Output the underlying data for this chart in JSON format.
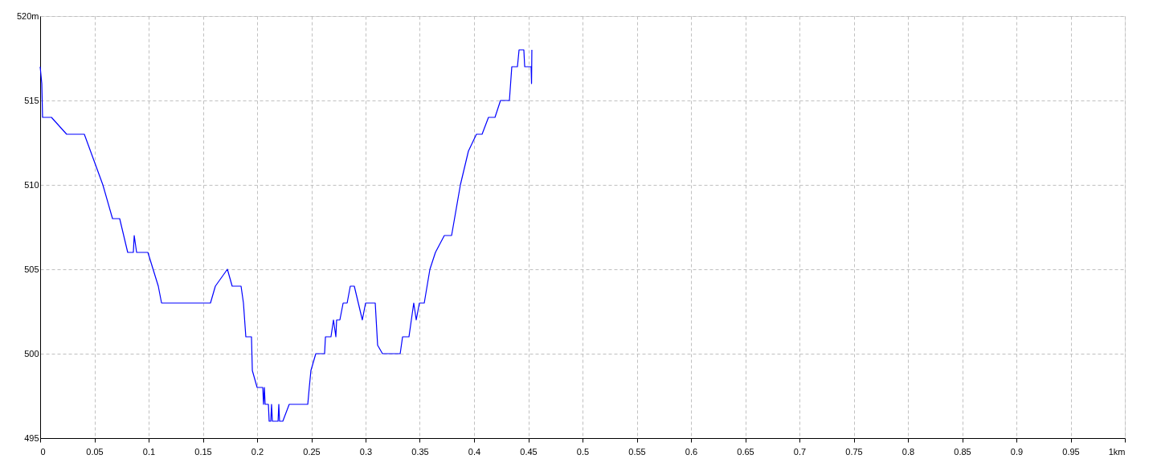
{
  "chart_data": {
    "type": "line",
    "x": [
      0,
      0.0015,
      0.0022,
      0.0104,
      0.0244,
      0.0407,
      0.0578,
      0.0667,
      0.0733,
      0.0807,
      0.0859,
      0.0867,
      0.0889,
      0.0993,
      0.1089,
      0.1119,
      0.157,
      0.1615,
      0.1726,
      0.177,
      0.1852,
      0.1874,
      0.1896,
      0.1948,
      0.1956,
      0.2,
      0.2052,
      0.2059,
      0.2067,
      0.2074,
      0.2104,
      0.2111,
      0.2126,
      0.2133,
      0.2141,
      0.2193,
      0.22,
      0.2207,
      0.2237,
      0.2296,
      0.2467,
      0.2481,
      0.2496,
      0.2541,
      0.2622,
      0.263,
      0.2681,
      0.2704,
      0.2726,
      0.2733,
      0.2763,
      0.2793,
      0.283,
      0.2859,
      0.2896,
      0.297,
      0.3,
      0.3089,
      0.3111,
      0.3156,
      0.3319,
      0.3341,
      0.34,
      0.3444,
      0.3467,
      0.3496,
      0.3541,
      0.3593,
      0.3644,
      0.3726,
      0.3793,
      0.3874,
      0.3948,
      0.4022,
      0.4074,
      0.4133,
      0.4193,
      0.4244,
      0.4326,
      0.4348,
      0.44,
      0.4415,
      0.4459,
      0.4467,
      0.4526,
      0.453,
      0.4533
    ],
    "series": [
      {
        "color": "#0000ff",
        "values": [
          517,
          516,
          514,
          514,
          513,
          513,
          510,
          508,
          508,
          506,
          506,
          507,
          506,
          506,
          504,
          503,
          503,
          504,
          505,
          504,
          504,
          503,
          501,
          501,
          499,
          498,
          498,
          497,
          498,
          497,
          497,
          496,
          496,
          497,
          496,
          496,
          497,
          496,
          496,
          497,
          497,
          498,
          499,
          500,
          500,
          501,
          501,
          502,
          501,
          502,
          502,
          503,
          503,
          504,
          504,
          502,
          503,
          503,
          500.5,
          500,
          500,
          501,
          501,
          503,
          502,
          503,
          503,
          505,
          506,
          507,
          507,
          510,
          512,
          513,
          513,
          514,
          514,
          515,
          515,
          517,
          517,
          518,
          518,
          517,
          517,
          516,
          518
        ]
      }
    ],
    "xlim": [
      0,
      1
    ],
    "xticks": [
      0,
      0.05,
      0.1,
      0.15,
      0.2,
      0.25,
      0.3,
      0.35,
      0.4,
      0.45,
      0.5,
      0.55,
      0.6,
      0.65,
      0.7,
      0.75,
      0.8,
      0.85,
      0.9,
      0.95,
      {
        "value": 1,
        "label": "1km"
      }
    ],
    "ylim": [
      495,
      520
    ],
    "yticks": [
      495,
      500,
      505,
      510,
      515,
      {
        "value": 520,
        "label": "520m"
      }
    ],
    "grid": true
  }
}
